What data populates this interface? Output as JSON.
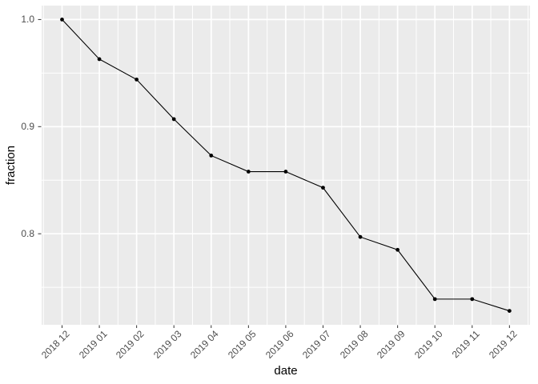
{
  "figure": {
    "background": "#FFFFFF",
    "panel_background": "#EBEBEB",
    "gridline_color": "#FFFFFF",
    "tick_mark_color": "#333333",
    "tick_label_color": "#4D4D4D",
    "axis_title_color": "#000000",
    "series_color": "#000000"
  },
  "chart_data": {
    "type": "line",
    "title": "",
    "xlabel": "date",
    "ylabel": "fraction",
    "categories": [
      "2018 12",
      "2019 01",
      "2019 02",
      "2019 03",
      "2019 04",
      "2019 05",
      "2019 06",
      "2019 07",
      "2019 08",
      "2019 09",
      "2019 10",
      "2019 11",
      "2019 12"
    ],
    "values": [
      1.0,
      0.963,
      0.944,
      0.907,
      0.873,
      0.858,
      0.858,
      0.843,
      0.797,
      0.785,
      0.739,
      0.739,
      0.728
    ],
    "y_ticks": [
      1.0,
      0.9,
      0.8
    ],
    "y_tick_labels": [
      "1.0",
      "0.9",
      "0.8"
    ],
    "y_minor_ticks": [
      0.95,
      0.85,
      0.75
    ],
    "ylim": [
      0.715,
      1.013
    ],
    "grid": true,
    "legend": "none",
    "marker": "point",
    "x_label_angle": 45
  }
}
